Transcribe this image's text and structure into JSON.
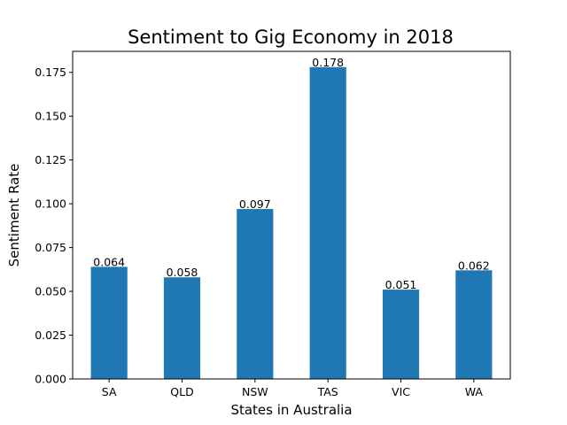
{
  "chart_data": {
    "type": "bar",
    "title": "Sentiment to Gig Economy in 2018",
    "xlabel": "States in Australia",
    "ylabel": "Sentiment Rate",
    "categories": [
      "SA",
      "QLD",
      "NSW",
      "TAS",
      "VIC",
      "WA"
    ],
    "values": [
      0.064,
      0.058,
      0.097,
      0.178,
      0.051,
      0.062
    ],
    "data_labels": [
      "0.064",
      "0.058",
      "0.097",
      "0.178",
      "0.051",
      "0.062"
    ],
    "ylim": [
      0,
      0.187
    ],
    "yticks": [
      0.0,
      0.025,
      0.05,
      0.075,
      0.1,
      0.125,
      0.15,
      0.175
    ],
    "ytick_labels": [
      "0.000",
      "0.025",
      "0.050",
      "0.075",
      "0.100",
      "0.125",
      "0.150",
      "0.175"
    ],
    "bar_color": "#1f77b4",
    "grid": false,
    "legend": "none"
  }
}
